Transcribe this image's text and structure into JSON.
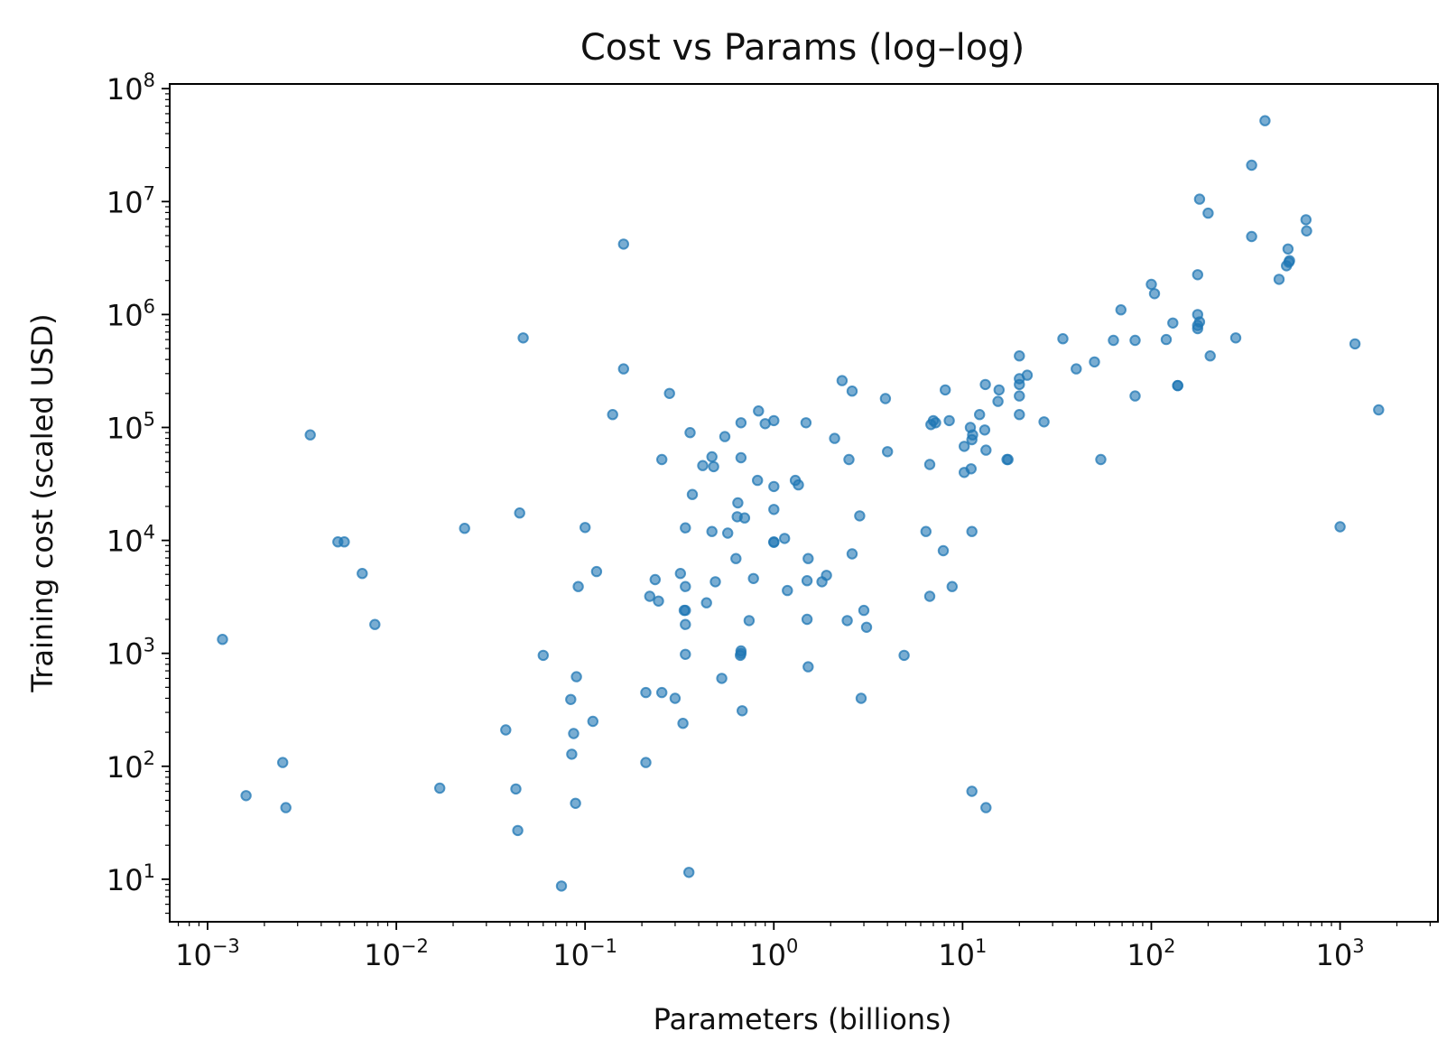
{
  "chart_data": {
    "type": "scatter",
    "title": "Cost vs Params (log–log)",
    "xlabel": "Parameters (billions)",
    "ylabel": "Training cost (scaled USD)",
    "xscale": "log",
    "yscale": "log",
    "xlim": [
      0.00063,
      3300
    ],
    "ylim": [
      4.2,
      110000000
    ],
    "x_ticks": [
      {
        "base": "10",
        "exp": "−3",
        "value": 0.001
      },
      {
        "base": "10",
        "exp": "−2",
        "value": 0.01
      },
      {
        "base": "10",
        "exp": "−1",
        "value": 0.1
      },
      {
        "base": "10",
        "exp": "0",
        "value": 1
      },
      {
        "base": "10",
        "exp": "1",
        "value": 10
      },
      {
        "base": "10",
        "exp": "2",
        "value": 100
      },
      {
        "base": "10",
        "exp": "3",
        "value": 1000
      }
    ],
    "y_ticks": [
      {
        "base": "10",
        "exp": "1",
        "value": 10
      },
      {
        "base": "10",
        "exp": "2",
        "value": 100
      },
      {
        "base": "10",
        "exp": "3",
        "value": 1000
      },
      {
        "base": "10",
        "exp": "4",
        "value": 10000
      },
      {
        "base": "10",
        "exp": "5",
        "value": 100000
      },
      {
        "base": "10",
        "exp": "6",
        "value": 1000000
      },
      {
        "base": "10",
        "exp": "7",
        "value": 10000000
      },
      {
        "base": "10",
        "exp": "8",
        "value": 100000000
      }
    ],
    "grid": false,
    "marker_color": "#1f77b4",
    "points": [
      [
        0.0012,
        1330
      ],
      [
        0.0016,
        55
      ],
      [
        0.0025,
        108
      ],
      [
        0.0026,
        43
      ],
      [
        0.0035,
        86000
      ],
      [
        0.0049,
        9700
      ],
      [
        0.0053,
        9700
      ],
      [
        0.0066,
        5100
      ],
      [
        0.0077,
        1800
      ],
      [
        0.017,
        64
      ],
      [
        0.023,
        12800
      ],
      [
        0.038,
        210
      ],
      [
        0.043,
        63
      ],
      [
        0.044,
        27
      ],
      [
        0.045,
        17500
      ],
      [
        0.047,
        620000
      ],
      [
        0.06,
        960
      ],
      [
        0.075,
        8.7
      ],
      [
        0.084,
        390
      ],
      [
        0.085,
        128
      ],
      [
        0.087,
        195
      ],
      [
        0.089,
        47
      ],
      [
        0.09,
        620
      ],
      [
        0.092,
        3900
      ],
      [
        0.1,
        13000
      ],
      [
        0.11,
        250
      ],
      [
        0.115,
        5300
      ],
      [
        0.14,
        130000
      ],
      [
        0.16,
        4200000
      ],
      [
        0.16,
        330000
      ],
      [
        0.21,
        108
      ],
      [
        0.21,
        450
      ],
      [
        0.22,
        3200
      ],
      [
        0.235,
        4500
      ],
      [
        0.245,
        2900
      ],
      [
        0.255,
        52000
      ],
      [
        0.255,
        450
      ],
      [
        0.28,
        200000
      ],
      [
        0.3,
        400
      ],
      [
        0.32,
        5100
      ],
      [
        0.33,
        240
      ],
      [
        0.335,
        2400
      ],
      [
        0.34,
        12900
      ],
      [
        0.34,
        1800
      ],
      [
        0.34,
        980
      ],
      [
        0.34,
        3900
      ],
      [
        0.34,
        2400
      ],
      [
        0.355,
        11.5
      ],
      [
        0.36,
        90000
      ],
      [
        0.37,
        25500
      ],
      [
        0.42,
        46000
      ],
      [
        0.44,
        2800
      ],
      [
        0.47,
        55000
      ],
      [
        0.47,
        12000
      ],
      [
        0.48,
        45000
      ],
      [
        0.49,
        4300
      ],
      [
        0.53,
        600
      ],
      [
        0.55,
        83000
      ],
      [
        0.57,
        11600
      ],
      [
        0.63,
        6900
      ],
      [
        0.64,
        16200
      ],
      [
        0.645,
        21500
      ],
      [
        0.665,
        960
      ],
      [
        0.67,
        54000
      ],
      [
        0.67,
        110000
      ],
      [
        0.67,
        1050
      ],
      [
        0.67,
        1000
      ],
      [
        0.68,
        310
      ],
      [
        0.7,
        15800
      ],
      [
        0.74,
        1950
      ],
      [
        0.78,
        4600
      ],
      [
        0.82,
        34000
      ],
      [
        0.83,
        140000
      ],
      [
        0.9,
        108000
      ],
      [
        1.0,
        18800
      ],
      [
        1.0,
        115000
      ],
      [
        1.0,
        30000
      ],
      [
        1.0,
        9600
      ],
      [
        1.0,
        9700
      ],
      [
        1.14,
        10400
      ],
      [
        1.18,
        3600
      ],
      [
        1.3,
        34000
      ],
      [
        1.35,
        31000
      ],
      [
        1.48,
        110000
      ],
      [
        1.5,
        2000
      ],
      [
        1.5,
        4400
      ],
      [
        1.52,
        6900
      ],
      [
        1.52,
        760
      ],
      [
        1.8,
        4300
      ],
      [
        1.9,
        4900
      ],
      [
        2.1,
        80000
      ],
      [
        2.3,
        260000
      ],
      [
        2.45,
        1950
      ],
      [
        2.5,
        52000
      ],
      [
        2.6,
        7600
      ],
      [
        2.6,
        210000
      ],
      [
        2.85,
        16500
      ],
      [
        2.9,
        400
      ],
      [
        3.0,
        2400
      ],
      [
        3.1,
        1700
      ],
      [
        3.9,
        180000
      ],
      [
        4.0,
        61000
      ],
      [
        4.9,
        960
      ],
      [
        6.4,
        12000
      ],
      [
        6.7,
        3200
      ],
      [
        6.7,
        47000
      ],
      [
        6.8,
        106000
      ],
      [
        7.0,
        115000
      ],
      [
        7.2,
        110000
      ],
      [
        7.9,
        8100
      ],
      [
        8.1,
        215000
      ],
      [
        8.5,
        115000
      ],
      [
        8.8,
        3900
      ],
      [
        10.2,
        68000
      ],
      [
        10.2,
        40000
      ],
      [
        11.0,
        100000
      ],
      [
        11.1,
        43000
      ],
      [
        11.2,
        60
      ],
      [
        11.2,
        12000
      ],
      [
        11.2,
        78000
      ],
      [
        11.3,
        86000
      ],
      [
        12.3,
        130000
      ],
      [
        13.1,
        95000
      ],
      [
        13.2,
        240000
      ],
      [
        13.3,
        63000
      ],
      [
        13.3,
        43
      ],
      [
        15.4,
        170000
      ],
      [
        15.6,
        215000
      ],
      [
        17.2,
        52000
      ],
      [
        17.4,
        52000
      ],
      [
        20,
        430000
      ],
      [
        20,
        130000
      ],
      [
        20,
        190000
      ],
      [
        20,
        240000
      ],
      [
        20,
        270000
      ],
      [
        22,
        290000
      ],
      [
        27,
        112000
      ],
      [
        34,
        610000
      ],
      [
        40,
        330000
      ],
      [
        50,
        380000
      ],
      [
        54,
        52000
      ],
      [
        63,
        590000
      ],
      [
        69,
        1100000
      ],
      [
        82,
        590000
      ],
      [
        82,
        190000
      ],
      [
        100,
        1850000
      ],
      [
        104,
        1530000
      ],
      [
        120,
        600000
      ],
      [
        130,
        840000
      ],
      [
        138,
        235000
      ],
      [
        138,
        235000
      ],
      [
        176,
        2250000
      ],
      [
        176,
        1000000
      ],
      [
        176,
        800000
      ],
      [
        176,
        750000
      ],
      [
        180,
        10500000
      ],
      [
        180,
        860000
      ],
      [
        200,
        7900000
      ],
      [
        205,
        430000
      ],
      [
        280,
        620000
      ],
      [
        340,
        21000000
      ],
      [
        340,
        4900000
      ],
      [
        400,
        52000000
      ],
      [
        475,
        2050000
      ],
      [
        520,
        2700000
      ],
      [
        530,
        3800000
      ],
      [
        535,
        2900000
      ],
      [
        540,
        3000000
      ],
      [
        660,
        6900000
      ],
      [
        665,
        5500000
      ],
      [
        1000,
        13200
      ],
      [
        1200,
        550000
      ],
      [
        1600,
        143000
      ]
    ]
  }
}
